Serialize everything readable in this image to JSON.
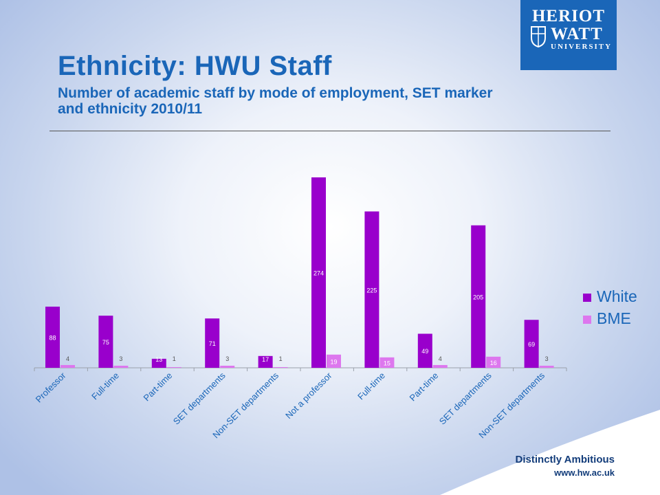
{
  "logo": {
    "line1": "HERIOT",
    "line2": "WATT",
    "line3": "UNIVERSITY"
  },
  "title": "Ethnicity: HWU Staff",
  "subtitle": "Number of academic staff by mode of employment, SET marker and ethnicity 2010/11",
  "footer": {
    "tagline": "Distinctly Ambitious",
    "url": "www.hw.ac.uk"
  },
  "colors": {
    "white": "#9900cc",
    "bme": "#dd77ee",
    "accent": "#1a66b8"
  },
  "chart_data": {
    "type": "bar",
    "categories": [
      "Professor",
      "Full-time",
      "Part-time",
      "SET departments",
      "Non-SET departments",
      "Not a professor",
      "Full-time",
      "Part-time",
      "SET departments",
      "Non-SET departments"
    ],
    "series": [
      {
        "name": "White",
        "values": [
          88,
          75,
          13,
          71,
          17,
          274,
          225,
          49,
          205,
          69
        ]
      },
      {
        "name": "BME",
        "values": [
          4,
          3,
          1,
          3,
          1,
          19,
          15,
          4,
          16,
          3
        ]
      }
    ],
    "legend": "right",
    "grid": false,
    "ylim": [
      0,
      280
    ]
  }
}
